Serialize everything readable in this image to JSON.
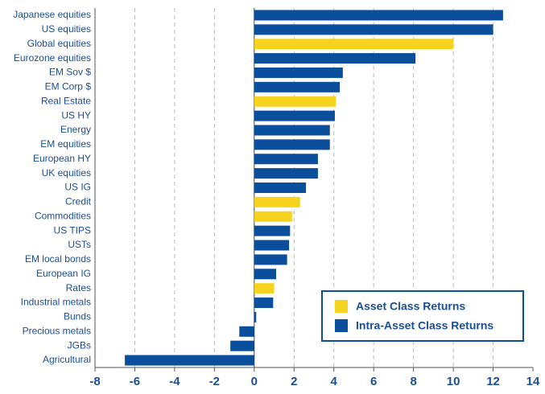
{
  "chart_data": {
    "type": "bar",
    "orientation": "horizontal",
    "categories": [
      "Japanese equities",
      "US equities",
      "Global equities",
      "Eurozone  equities",
      "EM Sov $",
      "EM Corp $",
      "Real Estate",
      "US HY",
      "Energy",
      "EM equities",
      "European HY",
      "UK equities",
      "US IG",
      "Credit",
      "Commodities",
      "US TIPS",
      "USTs",
      "EM local bonds",
      "European IG",
      "Rates",
      "Industrial metals",
      "Bunds",
      "Precious metals",
      "JGBs",
      "Agricultural"
    ],
    "series": [
      {
        "name": "Asset Class Returns",
        "color": "#f5d31f",
        "values": [
          null,
          null,
          10.0,
          null,
          null,
          null,
          4.1,
          null,
          null,
          null,
          null,
          null,
          null,
          2.3,
          1.9,
          null,
          null,
          null,
          null,
          1.0,
          null,
          null,
          null,
          null,
          null
        ]
      },
      {
        "name": "Intra-Asset Class Returns",
        "color": "#0b4f9c",
        "values": [
          12.5,
          12.0,
          null,
          8.1,
          4.45,
          4.3,
          null,
          4.05,
          3.8,
          3.8,
          3.2,
          3.2,
          2.6,
          null,
          null,
          1.8,
          1.75,
          1.65,
          1.1,
          null,
          0.95,
          0.1,
          -0.75,
          -1.2,
          -6.5
        ]
      }
    ],
    "xlim": [
      -8,
      14
    ],
    "xticks": [
      -8,
      -6,
      -4,
      -2,
      0,
      2,
      4,
      6,
      8,
      10,
      12,
      14
    ],
    "grid": true,
    "legend": "lower right"
  }
}
